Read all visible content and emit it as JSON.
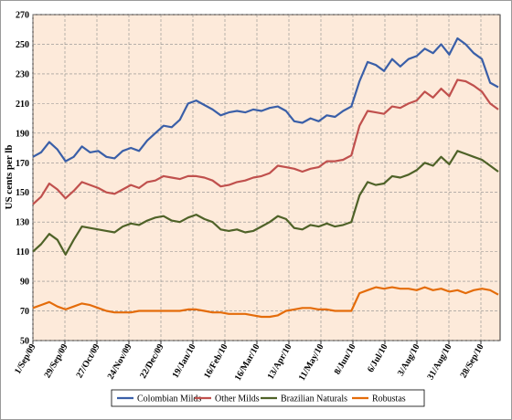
{
  "chart_data": {
    "type": "line",
    "ylabel": "US cents per lb",
    "ylim": [
      50,
      270
    ],
    "yticks": [
      50,
      70,
      90,
      110,
      130,
      150,
      170,
      190,
      210,
      230,
      250,
      270
    ],
    "xticks": [
      "1/Sep/09",
      "29/Sep/09",
      "27/Oct/09",
      "24/Nov/09",
      "22/Dec/09",
      "19/Jan/10",
      "16/Feb/10",
      "16/Mar/10",
      "13/Apr/10",
      "11/May/10",
      "8/Jun/10",
      "6/Jul/10",
      "3/Aug/10",
      "31/Aug/10",
      "28/Sep/10"
    ],
    "grid": true,
    "legend_position": "bottom",
    "x": [
      "1/Sep/09",
      "8/Sep/09",
      "15/Sep/09",
      "22/Sep/09",
      "29/Sep/09",
      "6/Oct/09",
      "13/Oct/09",
      "20/Oct/09",
      "27/Oct/09",
      "3/Nov/09",
      "10/Nov/09",
      "17/Nov/09",
      "24/Nov/09",
      "1/Dec/09",
      "8/Dec/09",
      "15/Dec/09",
      "22/Dec/09",
      "29/Dec/09",
      "5/Jan/10",
      "12/Jan/10",
      "19/Jan/10",
      "26/Jan/10",
      "2/Feb/10",
      "9/Feb/10",
      "16/Feb/10",
      "23/Feb/10",
      "2/Mar/10",
      "9/Mar/10",
      "16/Mar/10",
      "23/Mar/10",
      "30/Mar/10",
      "6/Apr/10",
      "13/Apr/10",
      "20/Apr/10",
      "27/Apr/10",
      "4/May/10",
      "11/May/10",
      "18/May/10",
      "25/May/10",
      "1/Jun/10",
      "8/Jun/10",
      "15/Jun/10",
      "22/Jun/10",
      "29/Jun/10",
      "6/Jul/10",
      "13/Jul/10",
      "20/Jul/10",
      "27/Jul/10",
      "3/Aug/10",
      "10/Aug/10",
      "17/Aug/10",
      "24/Aug/10",
      "31/Aug/10",
      "7/Sep/10",
      "14/Sep/10",
      "21/Sep/10",
      "28/Sep/10",
      "5/Oct/10"
    ],
    "series": [
      {
        "name": "Colombian Milds",
        "color": "#3a5fa8",
        "values": [
          174,
          177,
          184,
          179,
          171,
          174,
          181,
          177,
          178,
          174,
          173,
          178,
          180,
          178,
          185,
          190,
          195,
          194,
          199,
          210,
          212,
          209,
          206,
          202,
          204,
          205,
          204,
          206,
          205,
          207,
          208,
          205,
          198,
          197,
          200,
          198,
          202,
          201,
          205,
          208,
          225,
          238,
          236,
          232,
          240,
          235,
          240,
          242,
          247,
          244,
          250,
          243,
          254,
          250,
          244,
          240,
          224,
          221
        ]
      },
      {
        "name": "Other Milds",
        "color": "#c0504d",
        "values": [
          142,
          147,
          156,
          152,
          146,
          151,
          157,
          155,
          153,
          150,
          149,
          152,
          155,
          153,
          157,
          158,
          161,
          160,
          159,
          161,
          161,
          160,
          158,
          154,
          155,
          157,
          158,
          160,
          161,
          163,
          168,
          167,
          166,
          164,
          166,
          167,
          171,
          171,
          172,
          175,
          195,
          205,
          204,
          203,
          208,
          207,
          210,
          212,
          218,
          214,
          220,
          215,
          226,
          225,
          222,
          218,
          210,
          206
        ]
      },
      {
        "name": "Brazilian Naturals",
        "color": "#4f6228",
        "values": [
          110,
          115,
          122,
          118,
          108,
          118,
          127,
          126,
          125,
          124,
          123,
          127,
          129,
          128,
          131,
          133,
          134,
          131,
          130,
          133,
          135,
          132,
          130,
          125,
          124,
          125,
          123,
          124,
          127,
          130,
          134,
          132,
          126,
          125,
          128,
          127,
          129,
          127,
          128,
          130,
          148,
          157,
          155,
          156,
          161,
          160,
          162,
          165,
          170,
          168,
          174,
          169,
          178,
          176,
          174,
          172,
          168,
          164
        ]
      },
      {
        "name": "Robustas",
        "color": "#e46c0a",
        "values": [
          72,
          74,
          76,
          73,
          71,
          73,
          75,
          74,
          72,
          70,
          69,
          69,
          69,
          70,
          70,
          70,
          70,
          70,
          70,
          71,
          71,
          70,
          69,
          69,
          68,
          68,
          68,
          67,
          66,
          66,
          67,
          70,
          71,
          72,
          72,
          71,
          71,
          70,
          70,
          70,
          82,
          84,
          86,
          85,
          86,
          85,
          85,
          84,
          86,
          84,
          85,
          83,
          84,
          82,
          84,
          85,
          84,
          81
        ]
      }
    ]
  }
}
